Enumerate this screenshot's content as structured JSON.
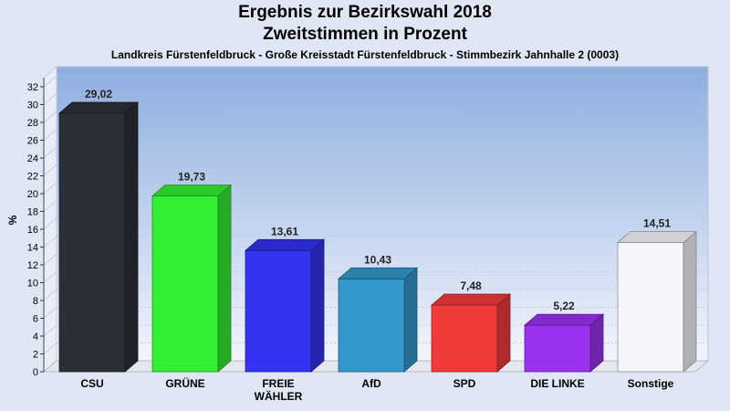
{
  "chart_data": {
    "type": "bar",
    "title": "Ergebnis zur Bezirkswahl 2018",
    "subtitle": "Zweitstimmen in Prozent",
    "description": "Landkreis Fürstenfeldbruck - Große Kreisstadt Fürstenfeldbruck - Stimmbezirk Jahnhalle 2 (0003)",
    "ylabel": "%",
    "xlabel": "",
    "ylim": [
      0,
      32
    ],
    "yticks": [
      0,
      2,
      4,
      6,
      8,
      10,
      12,
      14,
      16,
      18,
      20,
      22,
      24,
      26,
      28,
      30,
      32
    ],
    "grid": true,
    "categories": [
      "CSU",
      "GRÜNE",
      "FREIE WÄHLER",
      "AfD",
      "SPD",
      "DIE LINKE",
      "Sonstige"
    ],
    "category_lines": [
      [
        "CSU"
      ],
      [
        "GRÜNE"
      ],
      [
        "FREIE",
        "WÄHLER"
      ],
      [
        "AfD"
      ],
      [
        "SPD"
      ],
      [
        "DIE LINKE"
      ],
      [
        "Sonstige"
      ]
    ],
    "values": [
      29.02,
      19.73,
      13.61,
      10.43,
      7.48,
      5.22,
      14.51
    ],
    "value_labels": [
      "29,02",
      "19,73",
      "13,61",
      "10,43",
      "7,48",
      "5,22",
      "14,51"
    ],
    "colors": [
      "#2b2f38",
      "#33ee33",
      "#3333f0",
      "#3399cc",
      "#f23a3a",
      "#9933ee",
      "#f4f6fb"
    ]
  }
}
